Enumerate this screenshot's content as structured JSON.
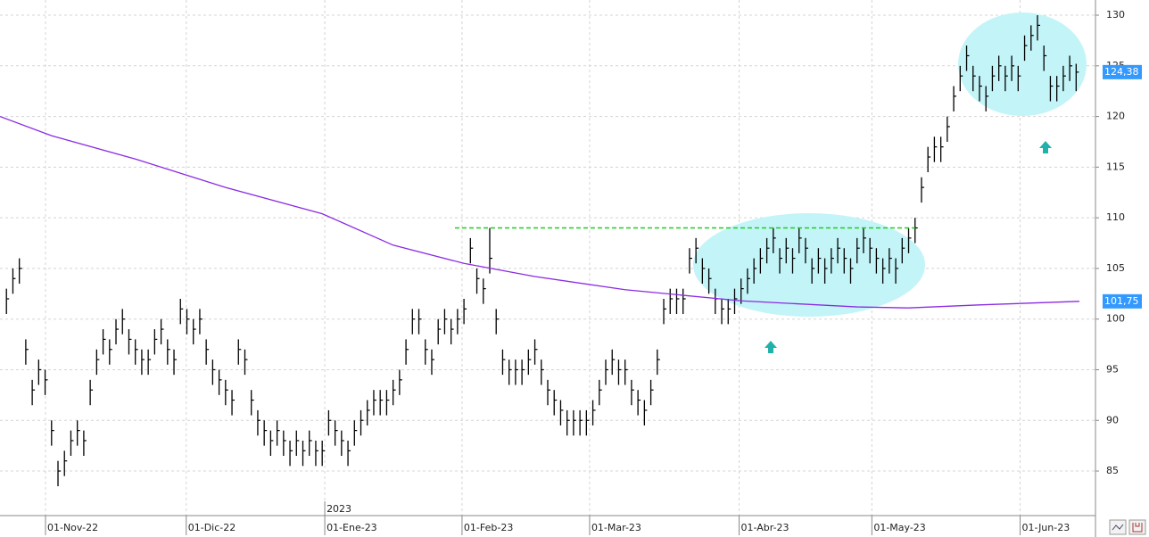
{
  "chart_data": {
    "type": "ohlc",
    "color": "#000000",
    "xlim": [
      0,
      170
    ],
    "ylim": [
      80.6,
      131.5
    ],
    "grid": true,
    "xticks": [
      {
        "value": 7.06,
        "label": "01-Nov-22"
      },
      {
        "value": 28.9,
        "label": "01-Dic-22"
      },
      {
        "value": 50.4,
        "label": "01-Ene-23"
      },
      {
        "value": 71.7,
        "label": "01-Feb-23"
      },
      {
        "value": 91.5,
        "label": "01-Mar-23"
      },
      {
        "value": 114.7,
        "label": "01-Abr-23"
      },
      {
        "value": 135.3,
        "label": "01-May-23"
      },
      {
        "value": 158.3,
        "label": "01-Jun-23"
      }
    ],
    "year_ticks": [
      {
        "value": 50.4,
        "label": "2023"
      }
    ],
    "yticks": [
      85,
      90,
      95,
      100,
      105,
      110,
      115,
      120,
      125,
      130
    ],
    "x": [
      1,
      2,
      3,
      4,
      5,
      6,
      7,
      8,
      9,
      10,
      11,
      12,
      13,
      14,
      15,
      16,
      17,
      18,
      19,
      20,
      21,
      22,
      23,
      24,
      25,
      26,
      27,
      28,
      29,
      30,
      31,
      32,
      33,
      34,
      35,
      36,
      37,
      38,
      39,
      40,
      41,
      42,
      43,
      44,
      45,
      46,
      47,
      48,
      49,
      50,
      51,
      52,
      53,
      54,
      55,
      56,
      57,
      58,
      59,
      60,
      61,
      62,
      63,
      64,
      65,
      66,
      67,
      68,
      69,
      70,
      71,
      72,
      73,
      74,
      75,
      76,
      77,
      78,
      79,
      80,
      81,
      82,
      83,
      84,
      85,
      86,
      87,
      88,
      89,
      90,
      91,
      92,
      93,
      94,
      95,
      96,
      97,
      98,
      99,
      100,
      101,
      102,
      103,
      104,
      105,
      106,
      107,
      108,
      109,
      110,
      111,
      112,
      113,
      114,
      115,
      116,
      117,
      118,
      119,
      120,
      121,
      122,
      123,
      124,
      125,
      126,
      127,
      128,
      129,
      130,
      131,
      132,
      133,
      134,
      135,
      136,
      137,
      138,
      139,
      140,
      141,
      142,
      143,
      144,
      145,
      146,
      147,
      148,
      149,
      150,
      151,
      152,
      153,
      154,
      155,
      156,
      157,
      158,
      159,
      160,
      161,
      162,
      163,
      164,
      165,
      166,
      167
    ],
    "high": [
      103,
      105,
      106,
      98,
      94,
      96,
      95,
      90,
      86,
      87,
      89,
      90,
      89,
      94,
      97,
      99,
      98,
      100,
      101,
      99,
      98,
      97,
      97,
      99,
      100,
      98,
      97,
      102,
      101,
      100,
      101,
      98,
      96,
      95,
      94,
      93,
      98,
      97,
      93,
      91,
      90,
      89,
      90,
      89,
      88,
      89,
      88,
      89,
      88,
      88,
      91,
      90,
      89,
      88,
      90,
      91,
      92,
      93,
      93,
      93,
      94,
      95,
      98,
      101,
      101,
      98,
      97,
      100,
      101,
      100,
      101,
      102,
      108,
      105,
      104,
      109,
      101,
      97,
      96,
      96,
      96,
      97,
      98,
      96,
      94,
      93,
      92,
      91,
      91,
      91,
      91,
      92,
      94,
      96,
      97,
      96,
      96,
      94,
      93,
      92,
      94,
      97,
      102,
      103,
      103,
      103,
      107,
      108,
      106,
      105,
      103,
      102,
      102,
      103,
      104,
      105,
      106,
      107,
      108,
      109,
      107,
      108,
      107,
      109,
      108,
      106,
      107,
      106,
      107,
      108,
      107,
      106,
      108,
      109,
      108,
      107,
      106,
      107,
      106,
      108,
      109,
      110,
      114,
      117,
      118,
      118,
      120,
      123,
      125,
      127,
      125,
      124,
      123,
      125,
      126,
      125,
      126,
      125,
      128,
      129,
      130,
      127,
      124,
      124,
      125,
      126,
      125.2
    ],
    "low": [
      100.5,
      102.5,
      103.5,
      95.5,
      91.5,
      93.5,
      92.5,
      87.5,
      83.5,
      84.5,
      86.5,
      87.5,
      86.5,
      91.5,
      94.5,
      96.5,
      95.5,
      97.5,
      98.5,
      96.5,
      95.5,
      94.5,
      94.5,
      96.5,
      97.5,
      95.5,
      94.5,
      99.5,
      98.5,
      97.5,
      98.5,
      95.5,
      93.5,
      92.5,
      91.5,
      90.5,
      95.5,
      94.5,
      90.5,
      88.5,
      87.5,
      86.5,
      87.5,
      86.5,
      85.5,
      86.5,
      85.5,
      86.5,
      85.5,
      85.5,
      88.5,
      87.5,
      86.5,
      85.5,
      87.5,
      88.5,
      89.5,
      90.5,
      90.5,
      90.5,
      91.5,
      92.5,
      95.5,
      98.5,
      98.5,
      95.5,
      94.5,
      97.5,
      98.5,
      97.5,
      98.5,
      99.5,
      105.5,
      102.5,
      101.5,
      104.5,
      98.5,
      94.5,
      93.5,
      93.5,
      93.5,
      94.5,
      95.5,
      93.5,
      91.5,
      90.5,
      89.5,
      88.5,
      88.5,
      88.5,
      88.5,
      89.5,
      91.5,
      93.5,
      94.5,
      93.5,
      93.5,
      91.5,
      90.5,
      89.5,
      91.5,
      94.5,
      99.5,
      100.5,
      100.5,
      100.5,
      104.5,
      105.5,
      103.5,
      102.5,
      100.5,
      99.5,
      99.5,
      100.5,
      101.5,
      102.5,
      103.5,
      104.5,
      105.5,
      106.5,
      104.5,
      105.5,
      104.5,
      106.5,
      105.5,
      103.5,
      104.5,
      103.5,
      104.5,
      105.5,
      104.5,
      103.5,
      105.5,
      106.5,
      105.5,
      104.5,
      103.5,
      104.5,
      103.5,
      105.5,
      106.5,
      107.5,
      111.5,
      114.5,
      115.5,
      115.5,
      117.5,
      120.5,
      122.5,
      124.5,
      122.5,
      121.5,
      120.5,
      122.5,
      123.5,
      122.5,
      123.5,
      122.5,
      125.5,
      126.5,
      127.5,
      124.5,
      121.5,
      121.5,
      122.5,
      123.5,
      122.5
    ],
    "close": [
      102,
      104,
      105,
      97,
      93,
      95,
      94,
      89,
      85,
      86,
      88,
      89,
      88,
      93,
      96,
      98,
      97,
      99,
      100,
      98,
      97,
      96,
      96,
      98,
      99,
      97,
      96,
      101,
      100,
      99,
      100,
      97,
      95,
      94,
      93,
      92,
      97,
      96,
      92,
      90,
      89,
      88,
      89,
      88,
      87,
      88,
      87,
      88,
      87,
      87,
      90,
      89,
      88,
      87,
      89,
      90,
      91,
      92,
      92,
      92,
      93,
      94,
      97,
      100,
      100,
      97,
      96,
      99,
      100,
      99,
      100,
      101,
      107,
      104,
      103,
      106,
      100,
      96,
      95,
      95,
      95,
      96,
      97,
      95,
      93,
      92,
      91,
      90,
      90,
      90,
      90,
      91,
      93,
      95,
      96,
      95,
      95,
      93,
      92,
      91,
      93,
      96,
      101,
      102,
      102,
      102,
      106,
      107,
      105,
      104,
      102,
      101,
      101,
      102,
      103,
      104,
      105,
      106,
      107,
      108,
      106,
      107,
      106,
      108,
      107,
      105,
      106,
      105,
      106,
      107,
      106,
      105,
      107,
      108,
      107,
      106,
      105,
      106,
      105,
      107,
      108,
      109,
      113,
      116,
      117,
      117,
      119,
      122,
      124,
      126,
      124,
      123,
      122,
      124,
      125,
      124,
      125,
      124,
      127,
      128,
      129,
      126,
      123,
      123,
      124,
      125,
      124.38
    ],
    "moving_average": {
      "color": "#8a2be2",
      "x": [
        0,
        8,
        21,
        35,
        50,
        61,
        72,
        83,
        97,
        115,
        133,
        141,
        152,
        167.5
      ],
      "values": [
        120,
        118.1,
        115.8,
        113,
        110.4,
        107.3,
        105.5,
        104.2,
        102.9,
        101.8,
        101.2,
        101.1,
        101.4,
        101.75
      ]
    },
    "resistance": {
      "value": 109,
      "x": [
        70.6,
        142
      ],
      "color": "#22cc22"
    },
    "price_tags": [
      {
        "value": 124.38,
        "label": "124,38",
        "color": "#3399ff"
      },
      {
        "value": 101.75,
        "label": "101,75",
        "color": "#3399ff"
      }
    ]
  }
}
